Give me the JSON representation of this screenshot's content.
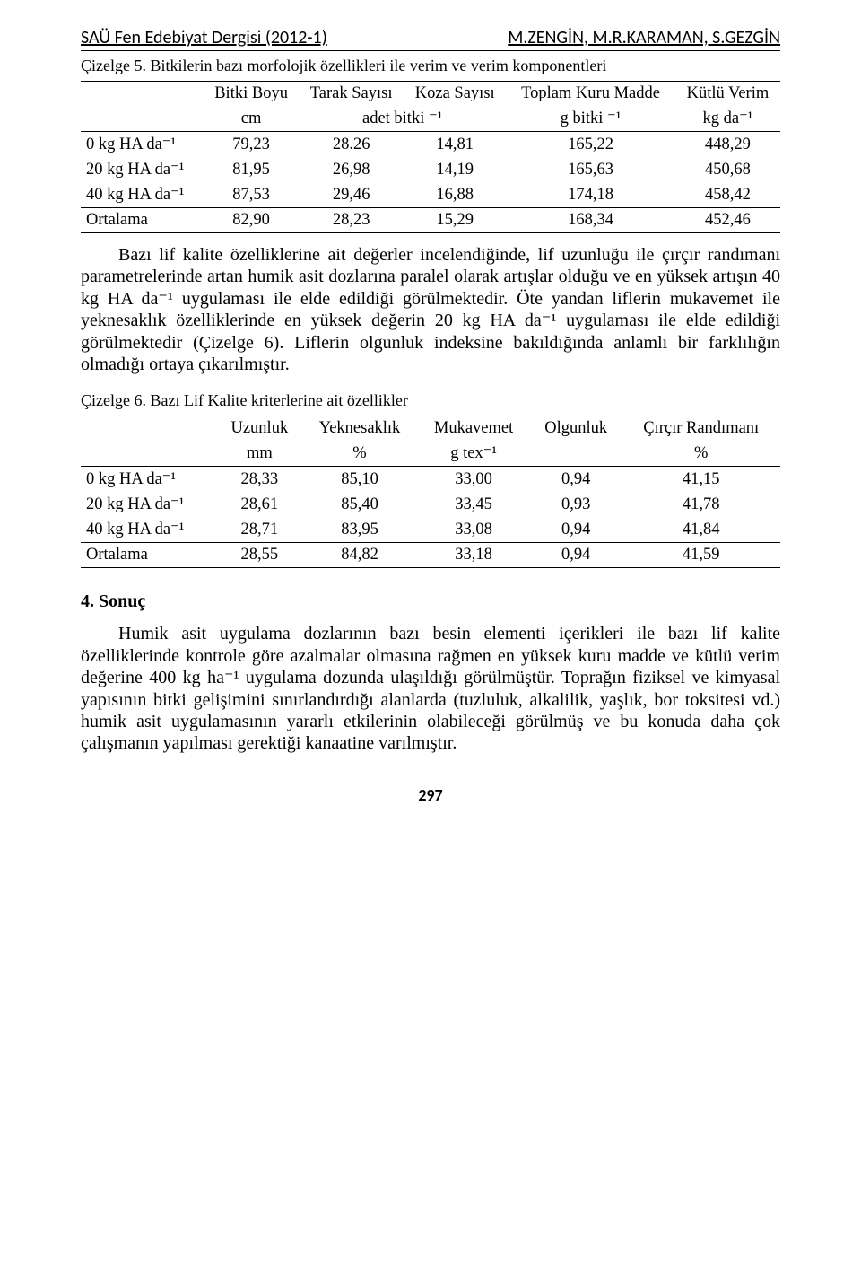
{
  "header": {
    "journal": "SAÜ Fen Edebiyat Dergisi (2012-1)",
    "authors": "M.ZENGİN, M.R.KARAMAN, S.GEZGİN"
  },
  "table5": {
    "caption": "Çizelge 5. Bitkilerin bazı morfolojik özellikleri ile verim ve verim komponentleri",
    "head1": [
      "",
      "Bitki Boyu",
      "Tarak Sayısı",
      "Koza Sayısı",
      "Toplam Kuru Madde",
      "Kütlü Verim"
    ],
    "head2": [
      "",
      "cm",
      "adet bitki ⁻¹",
      "",
      "g bitki ⁻¹",
      "kg da⁻¹"
    ],
    "rows": [
      {
        "label": "0 kg HA da⁻¹",
        "c": [
          "79,23",
          "28.26",
          "14,81",
          "165,22",
          "448,29"
        ]
      },
      {
        "label": "20 kg HA da⁻¹",
        "c": [
          "81,95",
          "26,98",
          "14,19",
          "165,63",
          "450,68"
        ]
      },
      {
        "label": "40 kg HA da⁻¹",
        "c": [
          "87,53",
          "29,46",
          "16,88",
          "174,18",
          "458,42"
        ]
      },
      {
        "label": "Ortalama",
        "c": [
          "82,90",
          "28,23",
          "15,29",
          "168,34",
          "452,46"
        ]
      }
    ]
  },
  "para1": "Bazı lif kalite özelliklerine ait değerler incelendiğinde, lif uzunluğu ile çırçır randımanı parametrelerinde artan humik asit dozlarına paralel olarak artışlar olduğu ve en yüksek artışın 40 kg HA da⁻¹ uygulaması ile elde edildiği görülmektedir. Öte yandan liflerin mukavemet ile yeknesaklık özelliklerinde en yüksek değerin 20 kg HA da⁻¹ uygulaması ile elde edildiği görülmektedir (Çizelge 6). Liflerin olgunluk indeksine bakıldığında anlamlı bir farklılığın olmadığı ortaya çıkarılmıştır.",
  "table6": {
    "caption": "Çizelge 6. Bazı Lif Kalite kriterlerine ait özellikler",
    "head1": [
      "",
      "Uzunluk",
      "Yeknesaklık",
      "Mukavemet",
      "Olgunluk",
      "Çırçır Randımanı"
    ],
    "head2": [
      "",
      "mm",
      "%",
      "g tex⁻¹",
      "",
      "%"
    ],
    "rows": [
      {
        "label": "0 kg HA da⁻¹",
        "c": [
          "28,33",
          "85,10",
          "33,00",
          "0,94",
          "41,15"
        ]
      },
      {
        "label": "20 kg HA da⁻¹",
        "c": [
          "28,61",
          "85,40",
          "33,45",
          "0,93",
          "41,78"
        ]
      },
      {
        "label": "40 kg HA da⁻¹",
        "c": [
          "28,71",
          "83,95",
          "33,08",
          "0,94",
          "41,84"
        ]
      },
      {
        "label": "Ortalama",
        "c": [
          "28,55",
          "84,82",
          "33,18",
          "0,94",
          "41,59"
        ]
      }
    ]
  },
  "section_head": "4. Sonuç",
  "para2": "Humik asit uygulama dozlarının bazı besin elementi içerikleri ile bazı lif kalite özelliklerinde kontrole göre azalmalar olmasına rağmen en yüksek kuru madde ve kütlü verim değerine 400 kg ha⁻¹ uygulama dozunda ulaşıldığı görülmüştür. Toprağın fiziksel ve kimyasal yapısının bitki gelişimini sınırlandırdığı alanlarda (tuzluluk, alkalilik, yaşlık, bor toksitesi vd.) humik asit uygulamasının yararlı etkilerinin olabileceği görülmüş ve bu konuda daha çok çalışmanın yapılması gerektiği kanaatine varılmıştır.",
  "page_number": "297",
  "style": {
    "body_font": "Times New Roman",
    "header_font": "Calibri",
    "body_fontsize_pt": 20,
    "caption_fontsize_pt": 18,
    "table_fontsize_pt": 18.5,
    "text_color": "#000000",
    "background_color": "#ffffff",
    "rule_color": "#000000"
  }
}
